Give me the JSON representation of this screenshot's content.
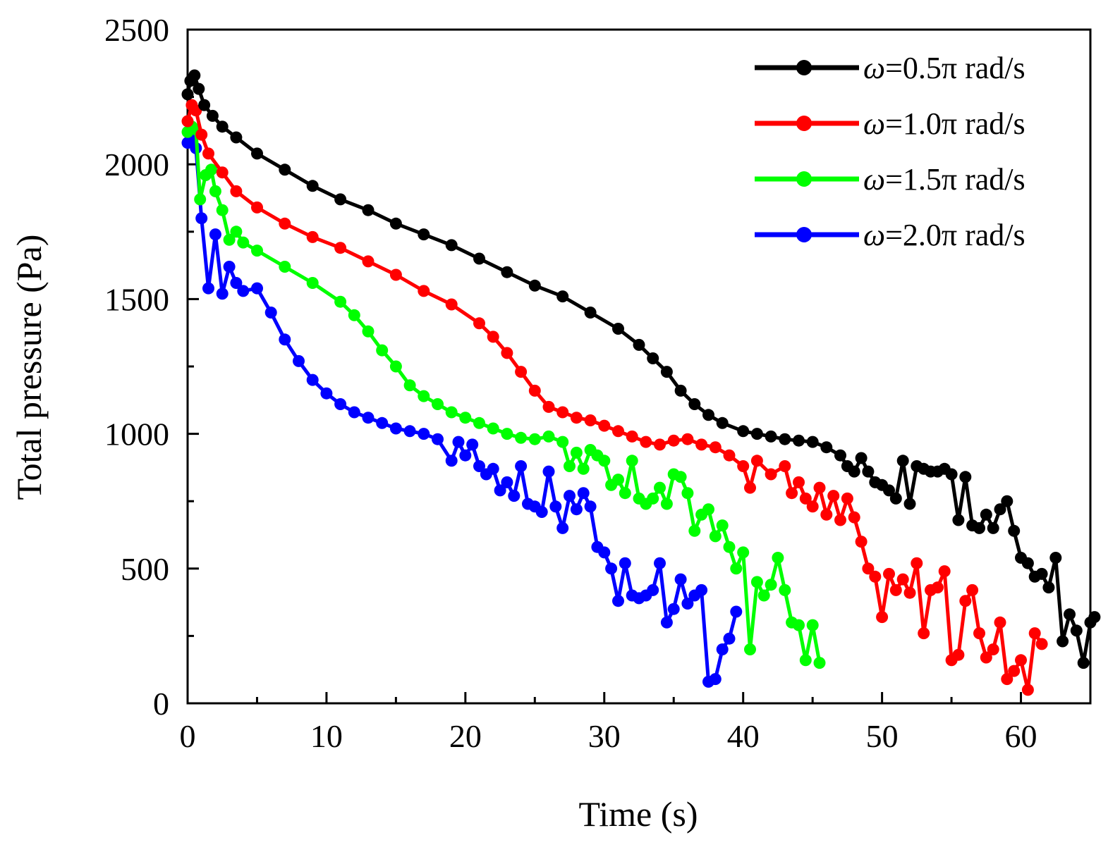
{
  "chart_data": {
    "type": "line",
    "title": "",
    "xlabel": "Time (s)",
    "ylabel": "Total pressure (Pa)",
    "xlim": [
      0,
      65
    ],
    "ylim": [
      0,
      2500
    ],
    "xticks": [
      0,
      10,
      20,
      30,
      40,
      50,
      60
    ],
    "yticks": [
      0,
      500,
      1000,
      1500,
      2000,
      2500
    ],
    "grid": false,
    "legend_position": "top-right",
    "series": [
      {
        "name": "ω=0.5π rad/s",
        "symbol": "ω",
        "label_rest": "=0.5π rad/s",
        "color": "#000000",
        "points": [
          [
            0,
            2260
          ],
          [
            0.2,
            2310
          ],
          [
            0.5,
            2330
          ],
          [
            0.8,
            2280
          ],
          [
            1.2,
            2220
          ],
          [
            1.8,
            2180
          ],
          [
            2.5,
            2140
          ],
          [
            3.5,
            2100
          ],
          [
            5,
            2040
          ],
          [
            7,
            1980
          ],
          [
            9,
            1920
          ],
          [
            11,
            1870
          ],
          [
            13,
            1830
          ],
          [
            15,
            1780
          ],
          [
            17,
            1740
          ],
          [
            19,
            1700
          ],
          [
            21,
            1650
          ],
          [
            23,
            1600
          ],
          [
            25,
            1550
          ],
          [
            27,
            1510
          ],
          [
            29,
            1450
          ],
          [
            31,
            1390
          ],
          [
            32.5,
            1330
          ],
          [
            33.5,
            1280
          ],
          [
            34.5,
            1230
          ],
          [
            35.5,
            1160
          ],
          [
            36.5,
            1110
          ],
          [
            37.5,
            1070
          ],
          [
            38.5,
            1040
          ],
          [
            40,
            1010
          ],
          [
            41,
            1000
          ],
          [
            42,
            990
          ],
          [
            43,
            980
          ],
          [
            44,
            975
          ],
          [
            45,
            970
          ],
          [
            46,
            950
          ],
          [
            47,
            920
          ],
          [
            47.5,
            880
          ],
          [
            48,
            860
          ],
          [
            48.5,
            910
          ],
          [
            49,
            860
          ],
          [
            49.5,
            820
          ],
          [
            50,
            810
          ],
          [
            50.5,
            790
          ],
          [
            51,
            760
          ],
          [
            51.5,
            900
          ],
          [
            52,
            740
          ],
          [
            52.5,
            880
          ],
          [
            53,
            870
          ],
          [
            53.5,
            860
          ],
          [
            54,
            860
          ],
          [
            54.5,
            870
          ],
          [
            55,
            850
          ],
          [
            55.5,
            680
          ],
          [
            56,
            840
          ],
          [
            56.5,
            660
          ],
          [
            57,
            650
          ],
          [
            57.5,
            700
          ],
          [
            58,
            650
          ],
          [
            58.5,
            720
          ],
          [
            59,
            750
          ],
          [
            59.5,
            640
          ],
          [
            60,
            540
          ],
          [
            60.5,
            520
          ],
          [
            61,
            470
          ],
          [
            61.5,
            480
          ],
          [
            62,
            430
          ],
          [
            62.5,
            540
          ],
          [
            63,
            230
          ],
          [
            63.5,
            330
          ],
          [
            64,
            270
          ],
          [
            64.5,
            150
          ],
          [
            65,
            300
          ],
          [
            65.3,
            320
          ]
        ]
      },
      {
        "name": "ω=1.0π rad/s",
        "symbol": "ω",
        "label_rest": "=1.0π rad/s",
        "color": "#ff0000",
        "points": [
          [
            0,
            2160
          ],
          [
            0.3,
            2220
          ],
          [
            0.6,
            2200
          ],
          [
            1,
            2110
          ],
          [
            1.5,
            2040
          ],
          [
            2.5,
            1970
          ],
          [
            3.5,
            1900
          ],
          [
            5,
            1840
          ],
          [
            7,
            1780
          ],
          [
            9,
            1730
          ],
          [
            11,
            1690
          ],
          [
            13,
            1640
          ],
          [
            15,
            1590
          ],
          [
            17,
            1530
          ],
          [
            19,
            1480
          ],
          [
            21,
            1410
          ],
          [
            22,
            1360
          ],
          [
            23,
            1300
          ],
          [
            24,
            1230
          ],
          [
            25,
            1160
          ],
          [
            26,
            1100
          ],
          [
            27,
            1080
          ],
          [
            28,
            1060
          ],
          [
            29,
            1050
          ],
          [
            30,
            1030
          ],
          [
            31,
            1010
          ],
          [
            32,
            990
          ],
          [
            33,
            970
          ],
          [
            34,
            960
          ],
          [
            35,
            975
          ],
          [
            36,
            980
          ],
          [
            37,
            960
          ],
          [
            38,
            950
          ],
          [
            39,
            920
          ],
          [
            40,
            880
          ],
          [
            40.5,
            800
          ],
          [
            41,
            900
          ],
          [
            42,
            850
          ],
          [
            43,
            880
          ],
          [
            43.5,
            780
          ],
          [
            44,
            820
          ],
          [
            44.5,
            760
          ],
          [
            45,
            730
          ],
          [
            45.5,
            800
          ],
          [
            46,
            700
          ],
          [
            46.5,
            770
          ],
          [
            47,
            680
          ],
          [
            47.5,
            760
          ],
          [
            48,
            690
          ],
          [
            48.5,
            600
          ],
          [
            49,
            500
          ],
          [
            49.5,
            470
          ],
          [
            50,
            320
          ],
          [
            50.5,
            480
          ],
          [
            51,
            420
          ],
          [
            51.5,
            460
          ],
          [
            52,
            410
          ],
          [
            52.5,
            520
          ],
          [
            53,
            260
          ],
          [
            53.5,
            420
          ],
          [
            54,
            430
          ],
          [
            54.5,
            490
          ],
          [
            55,
            160
          ],
          [
            55.5,
            180
          ],
          [
            56,
            380
          ],
          [
            56.5,
            420
          ],
          [
            57,
            260
          ],
          [
            57.5,
            170
          ],
          [
            58,
            200
          ],
          [
            58.5,
            300
          ],
          [
            59,
            90
          ],
          [
            59.5,
            120
          ],
          [
            60,
            160
          ],
          [
            60.5,
            50
          ],
          [
            61,
            260
          ],
          [
            61.5,
            220
          ]
        ]
      },
      {
        "name": "ω=1.5π rad/s",
        "symbol": "ω",
        "label_rest": "=1.5π rad/s",
        "color": "#00ff00",
        "points": [
          [
            0,
            2120
          ],
          [
            0.3,
            2140
          ],
          [
            0.6,
            2130
          ],
          [
            0.9,
            1870
          ],
          [
            1.3,
            1960
          ],
          [
            1.7,
            1980
          ],
          [
            2,
            1900
          ],
          [
            2.5,
            1830
          ],
          [
            3,
            1720
          ],
          [
            3.5,
            1750
          ],
          [
            4,
            1710
          ],
          [
            5,
            1680
          ],
          [
            7,
            1620
          ],
          [
            9,
            1560
          ],
          [
            11,
            1490
          ],
          [
            12,
            1440
          ],
          [
            13,
            1380
          ],
          [
            14,
            1310
          ],
          [
            15,
            1250
          ],
          [
            16,
            1180
          ],
          [
            17,
            1140
          ],
          [
            18,
            1110
          ],
          [
            19,
            1080
          ],
          [
            20,
            1060
          ],
          [
            21,
            1040
          ],
          [
            22,
            1020
          ],
          [
            23,
            1000
          ],
          [
            24,
            985
          ],
          [
            25,
            980
          ],
          [
            26,
            990
          ],
          [
            27,
            970
          ],
          [
            27.5,
            880
          ],
          [
            28,
            930
          ],
          [
            28.5,
            870
          ],
          [
            29,
            940
          ],
          [
            29.5,
            920
          ],
          [
            30,
            900
          ],
          [
            30.5,
            810
          ],
          [
            31,
            830
          ],
          [
            31.5,
            780
          ],
          [
            32,
            900
          ],
          [
            32.5,
            760
          ],
          [
            33,
            740
          ],
          [
            33.5,
            760
          ],
          [
            34,
            800
          ],
          [
            34.5,
            740
          ],
          [
            35,
            850
          ],
          [
            35.5,
            840
          ],
          [
            36,
            780
          ],
          [
            36.5,
            640
          ],
          [
            37,
            700
          ],
          [
            37.5,
            720
          ],
          [
            38,
            620
          ],
          [
            38.5,
            660
          ],
          [
            39,
            580
          ],
          [
            39.5,
            500
          ],
          [
            40,
            560
          ],
          [
            40.5,
            200
          ],
          [
            41,
            450
          ],
          [
            41.5,
            400
          ],
          [
            42,
            440
          ],
          [
            42.5,
            540
          ],
          [
            43,
            420
          ],
          [
            43.5,
            300
          ],
          [
            44,
            290
          ],
          [
            44.5,
            160
          ],
          [
            45,
            290
          ],
          [
            45.5,
            150
          ]
        ]
      },
      {
        "name": "ω=2.0π rad/s",
        "symbol": "ω",
        "label_rest": "=2.0π rad/s",
        "color": "#0000ff",
        "points": [
          [
            0,
            2080
          ],
          [
            0.3,
            2100
          ],
          [
            0.6,
            2060
          ],
          [
            1,
            1800
          ],
          [
            1.5,
            1540
          ],
          [
            2,
            1740
          ],
          [
            2.5,
            1520
          ],
          [
            3,
            1620
          ],
          [
            3.5,
            1560
          ],
          [
            4,
            1530
          ],
          [
            5,
            1540
          ],
          [
            6,
            1450
          ],
          [
            7,
            1350
          ],
          [
            8,
            1270
          ],
          [
            9,
            1200
          ],
          [
            10,
            1150
          ],
          [
            11,
            1110
          ],
          [
            12,
            1080
          ],
          [
            13,
            1060
          ],
          [
            14,
            1040
          ],
          [
            15,
            1020
          ],
          [
            16,
            1010
          ],
          [
            17,
            1000
          ],
          [
            18,
            980
          ],
          [
            19,
            900
          ],
          [
            19.5,
            970
          ],
          [
            20,
            920
          ],
          [
            20.5,
            960
          ],
          [
            21,
            880
          ],
          [
            21.5,
            850
          ],
          [
            22,
            870
          ],
          [
            22.5,
            790
          ],
          [
            23,
            820
          ],
          [
            23.5,
            770
          ],
          [
            24,
            880
          ],
          [
            24.5,
            740
          ],
          [
            25,
            730
          ],
          [
            25.5,
            710
          ],
          [
            26,
            860
          ],
          [
            26.5,
            730
          ],
          [
            27,
            650
          ],
          [
            27.5,
            770
          ],
          [
            28,
            720
          ],
          [
            28.5,
            780
          ],
          [
            29,
            730
          ],
          [
            29.5,
            580
          ],
          [
            30,
            560
          ],
          [
            30.5,
            500
          ],
          [
            31,
            380
          ],
          [
            31.5,
            520
          ],
          [
            32,
            400
          ],
          [
            32.5,
            390
          ],
          [
            33,
            400
          ],
          [
            33.5,
            420
          ],
          [
            34,
            520
          ],
          [
            34.5,
            300
          ],
          [
            35,
            350
          ],
          [
            35.5,
            460
          ],
          [
            36,
            370
          ],
          [
            36.5,
            400
          ],
          [
            37,
            420
          ],
          [
            37.5,
            80
          ],
          [
            38,
            90
          ],
          [
            38.5,
            200
          ],
          [
            39,
            240
          ],
          [
            39.5,
            340
          ]
        ]
      }
    ]
  }
}
